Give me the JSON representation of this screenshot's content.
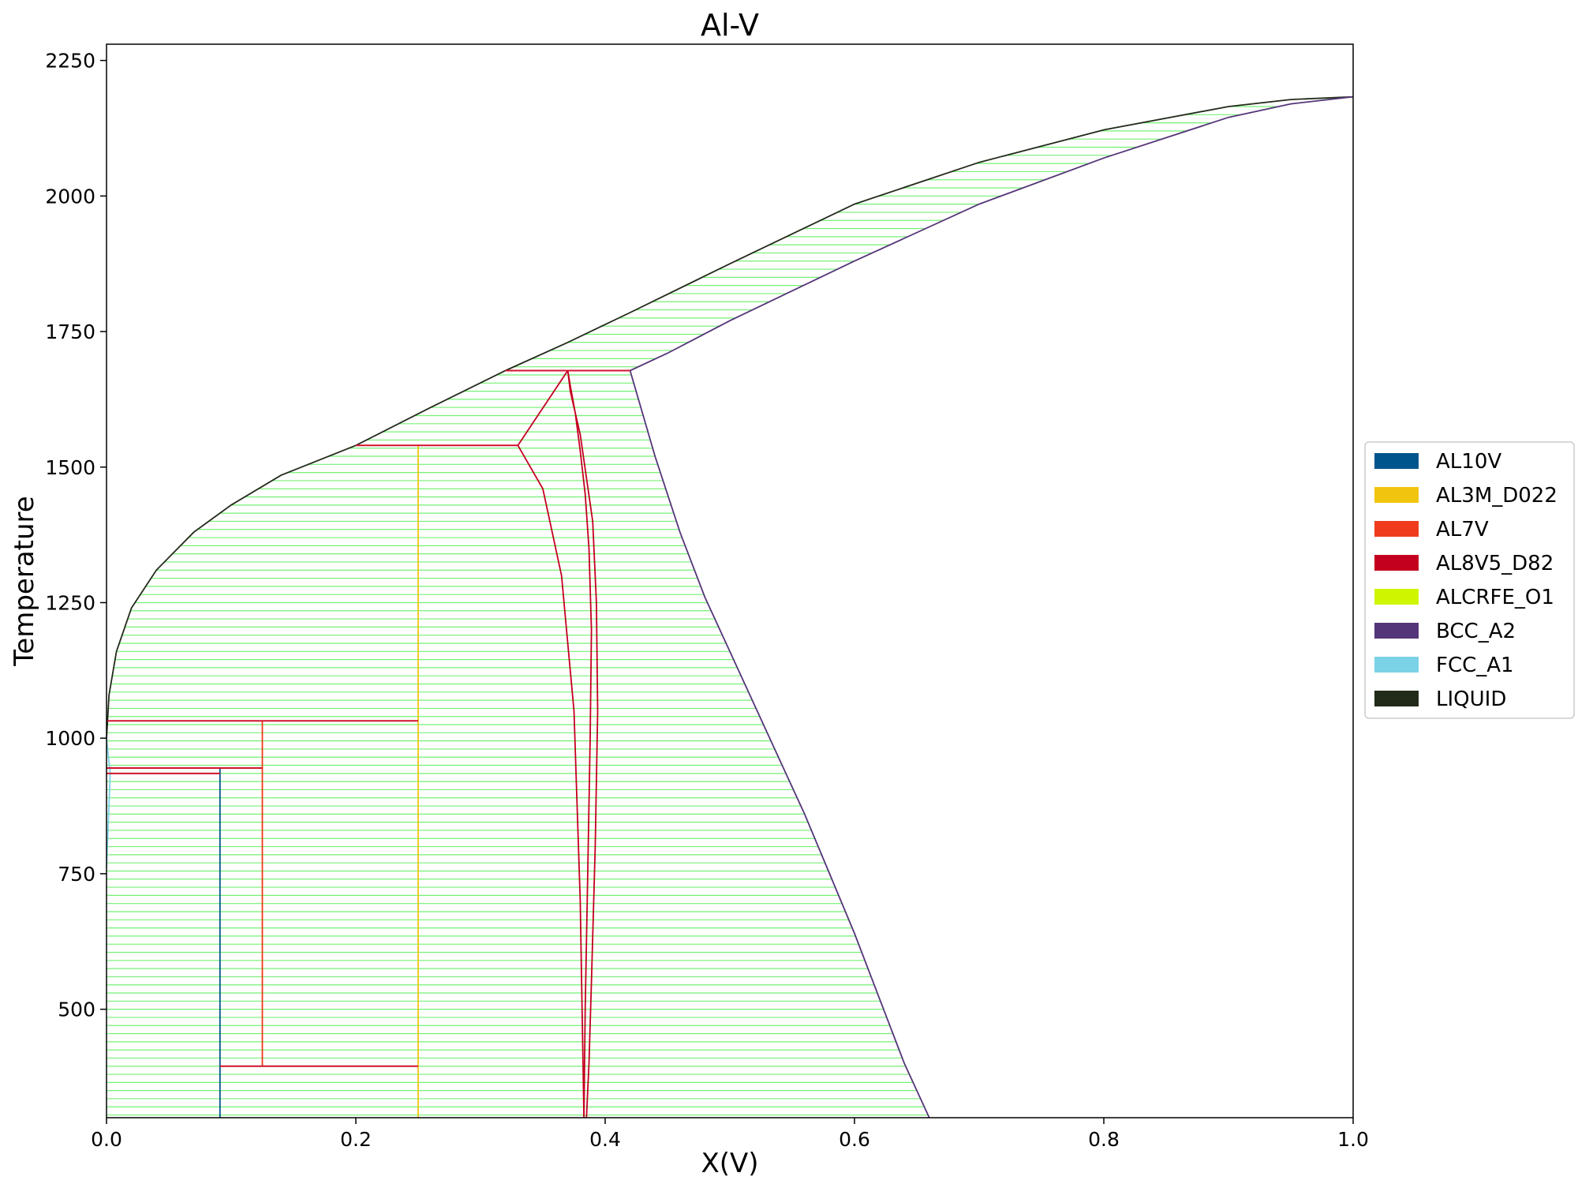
{
  "chart_data": {
    "type": "line",
    "title": "Al-V",
    "xlabel": "X(V)",
    "ylabel": "Temperature",
    "xlim": [
      0.0,
      1.0
    ],
    "ylim": [
      300,
      2280
    ],
    "x_ticks": [
      "0.0",
      "0.2",
      "0.4",
      "0.6",
      "0.8",
      "1.0"
    ],
    "x_tick_values": [
      0.0,
      0.2,
      0.4,
      0.6,
      0.8,
      1.0
    ],
    "y_ticks": [
      "500",
      "750",
      "1000",
      "1250",
      "1500",
      "1750",
      "2000",
      "2250"
    ],
    "y_tick_values": [
      500,
      750,
      1000,
      1250,
      1500,
      1750,
      2000,
      2250
    ],
    "grid": false,
    "legend_position": "center-right, outside plot",
    "legend": [
      {
        "name": "AL10V",
        "color": "#00558c"
      },
      {
        "name": "AL3M_D022",
        "color": "#f1c40f"
      },
      {
        "name": "AL7V",
        "color": "#f03c1c"
      },
      {
        "name": "AL8V5_D82",
        "color": "#c4001f"
      },
      {
        "name": "ALCRFE_O1",
        "color": "#cff500"
      },
      {
        "name": "BCC_A2",
        "color": "#553579"
      },
      {
        "name": "FCC_A1",
        "color": "#7ad2e6"
      },
      {
        "name": "LIQUID",
        "color": "#222b1a"
      }
    ],
    "tieline_color": "#66ee66",
    "series": [
      {
        "name": "LIQUID",
        "color": "#222b1a",
        "x": [
          0.0,
          0.002,
          0.008,
          0.02,
          0.04,
          0.07,
          0.1,
          0.14,
          0.2,
          0.26,
          0.32,
          0.37,
          0.42,
          0.5,
          0.6,
          0.7,
          0.8,
          0.9,
          0.95,
          1.0
        ],
        "y": [
          1000,
          1080,
          1160,
          1240,
          1310,
          1380,
          1430,
          1485,
          1540,
          1610,
          1678,
          1730,
          1785,
          1875,
          1985,
          2062,
          2122,
          2165,
          2178,
          2183
        ]
      },
      {
        "name": "BCC_A2",
        "color": "#553579",
        "x": [
          0.66,
          0.64,
          0.62,
          0.6,
          0.58,
          0.56,
          0.54,
          0.52,
          0.5,
          0.48,
          0.46,
          0.44,
          0.42,
          0.45,
          0.5,
          0.6,
          0.7,
          0.8,
          0.9,
          0.95,
          1.0
        ],
        "y": [
          300,
          400,
          520,
          640,
          750,
          860,
          960,
          1060,
          1160,
          1260,
          1380,
          1520,
          1678,
          1710,
          1770,
          1880,
          1985,
          2070,
          2145,
          2170,
          2183
        ]
      },
      {
        "name": "AL8V5_D82",
        "color": "#c4001f",
        "x": [
          0.383,
          0.384,
          0.386,
          0.388,
          0.389,
          0.387,
          0.384,
          0.38,
          0.376,
          0.372,
          0.37,
          0.372,
          0.38,
          0.39,
          0.393,
          0.394,
          0.392,
          0.389,
          0.387,
          0.385
        ],
        "y": [
          300,
          500,
          750,
          1000,
          1200,
          1350,
          1450,
          1530,
          1600,
          1650,
          1678,
          1640,
          1560,
          1400,
          1250,
          1050,
          800,
          550,
          400,
          300
        ]
      },
      {
        "name": "AL8V5_D82 (inner)",
        "color": "#c4001f",
        "x": [
          0.37,
          0.33,
          0.35,
          0.365,
          0.375,
          0.38,
          0.383
        ],
        "y": [
          1678,
          1540,
          1460,
          1300,
          1050,
          700,
          300
        ]
      },
      {
        "name": "AL3M_D022",
        "color": "#f1c40f",
        "x": [
          0.25,
          0.25
        ],
        "y": [
          300,
          1540
        ]
      },
      {
        "name": "AL7V",
        "color": "#f03c1c",
        "x": [
          0.125,
          0.125
        ],
        "y": [
          395,
          1032
        ]
      },
      {
        "name": "AL10V",
        "color": "#00558c",
        "x": [
          0.091,
          0.091
        ],
        "y": [
          300,
          945
        ]
      },
      {
        "name": "FCC_A1",
        "color": "#7ad2e6",
        "x": [
          0.0,
          0.003,
          0.0
        ],
        "y": [
          760,
          935,
          1000
        ]
      }
    ],
    "invariant_lines": [
      {
        "x": [
          0.2,
          0.33
        ],
        "y": 1540
      },
      {
        "x": [
          0.32,
          0.42
        ],
        "y": 1678
      },
      {
        "x": [
          0.0,
          0.25
        ],
        "y": 1032
      },
      {
        "x": [
          0.0,
          0.125
        ],
        "y": 945
      },
      {
        "x": [
          0.0,
          0.091
        ],
        "y": 935
      },
      {
        "x": [
          0.091,
          0.25
        ],
        "y": 395
      }
    ]
  }
}
